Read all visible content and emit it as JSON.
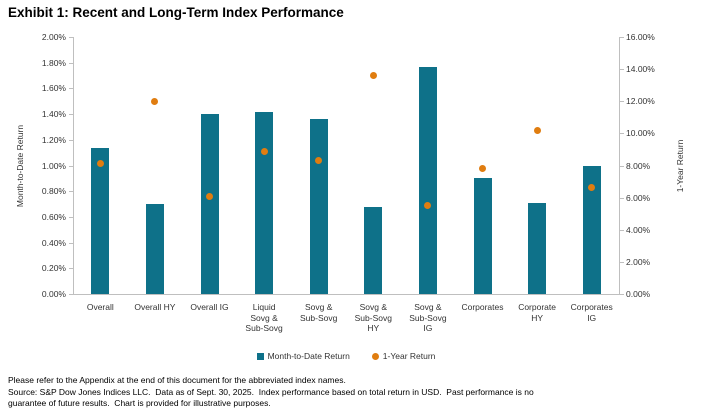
{
  "title": "Exhibit 1: Recent and Long-Term Index Performance",
  "chart_data": {
    "type": "bar",
    "subtype": "combo-bar-and-scatter",
    "title": "Exhibit 1: Recent and Long-Term Index Performance",
    "categories": [
      "Overall",
      "Overall HY",
      "Overall IG",
      "Liquid\nSovg &\nSub-Sovg",
      "Sovg &\nSub-Sovg",
      "Sovg &\nSub-Sovg\nHY",
      "Sovg &\nSub-Sovg\nIG",
      "Corporates",
      "Corporate\nHY",
      "Corporates\nIG"
    ],
    "series": [
      {
        "name": "Month-to-Date Return",
        "type": "bar",
        "axis": "left",
        "color": "#0e7189",
        "values": [
          1.14,
          0.7,
          1.4,
          1.42,
          1.36,
          0.68,
          1.77,
          0.9,
          0.71,
          1.0
        ]
      },
      {
        "name": "1-Year Return",
        "type": "scatter",
        "axis": "right",
        "color": "#e07d10",
        "values": [
          8.1,
          12.0,
          6.1,
          8.9,
          8.3,
          13.6,
          5.5,
          7.8,
          10.2,
          6.6
        ]
      }
    ],
    "left_axis": {
      "label": "Month-to-Date Return",
      "min": 0,
      "max": 2,
      "step": 0.2,
      "tick_format": "0.00%"
    },
    "right_axis": {
      "label": "1-Year Return",
      "min": 0,
      "max": 16,
      "step": 2,
      "tick_format": "0.00%"
    },
    "legend_position": "bottom",
    "grid": false,
    "axis_color": "#bfbfbf"
  },
  "footer": {
    "line1": "Please refer to the Appendix at the end of this document for the abbreviated index names.",
    "line2": "Source: S&P Dow Jones Indices LLC.  Data as of Sept. 30, 2025.  Index performance based on total return in USD.  Past performance is no",
    "line3": "guarantee of future results.  Chart is provided for illustrative purposes."
  }
}
